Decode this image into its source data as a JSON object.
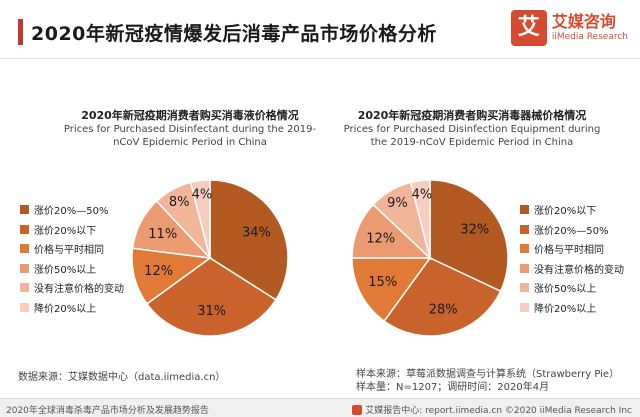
{
  "page": {
    "title": "2020年新冠疫情爆发后消毒产品市场价格分析"
  },
  "logo": {
    "mark": "艾",
    "cn": "艾媒咨询",
    "en": "iiMedia Research"
  },
  "colors": {
    "accent": "#c0392b",
    "brand": "#d64b2f"
  },
  "chart_data": [
    {
      "type": "pie",
      "title_cn": "2020年新冠疫期消费者购买消毒液价格情况",
      "title_en": "Prices for Purchased Disinfectant during the 2019-nCoV Epidemic Period in China",
      "title_en_line1": "Prices for Purchased Disinfectant during the 2019-",
      "title_en_line2": "nCoV Epidemic Period in China",
      "legend_position": "left",
      "slices": [
        {
          "label": "涨价20%—50%",
          "value": 34,
          "display": "34%",
          "color": "#b35a22"
        },
        {
          "label": "涨价20%以下",
          "value": 31,
          "display": "31%",
          "color": "#c9632b"
        },
        {
          "label": "价格与平时相同",
          "value": 12,
          "display": "12%",
          "color": "#e07a36"
        },
        {
          "label": "涨价50%以上",
          "value": 11,
          "display": "11%",
          "color": "#ec9a72"
        },
        {
          "label": "没有注意价格的变动",
          "value": 8,
          "display": "8%",
          "color": "#f2b59a"
        },
        {
          "label": "降价20%以上",
          "value": 4,
          "display": "4%",
          "color": "#f7cdbf"
        }
      ]
    },
    {
      "type": "pie",
      "title_cn": "2020年新冠疫期消费者购买消毒器械价格情况",
      "title_en": "Prices for Purchased Disinfection Equipment during the 2019-nCoV Epidemic Period in China",
      "title_en_line1": "Prices for Purchased Disinfection Equipment during",
      "title_en_line2": "the 2019-nCoV Epidemic Period in China",
      "legend_position": "right",
      "slices": [
        {
          "label": "涨价20%以下",
          "value": 32,
          "display": "32%",
          "color": "#b35a22"
        },
        {
          "label": "涨价20%—50%",
          "value": 28,
          "display": "28%",
          "color": "#c9632b"
        },
        {
          "label": "价格与平时相同",
          "value": 15,
          "display": "15%",
          "color": "#e07a36"
        },
        {
          "label": "没有注意价格的变动",
          "value": 12,
          "display": "12%",
          "color": "#ec9a72"
        },
        {
          "label": "涨价50%以上",
          "value": 9,
          "display": "9%",
          "color": "#f2b59a"
        },
        {
          "label": "降价20%以上",
          "value": 4,
          "display": "4%",
          "color": "#f7cdbf"
        }
      ]
    }
  ],
  "sources": {
    "left": "数据来源：艾媒数据中心（data.iimedia.cn）",
    "right_line1": "样本来源：草莓派数据调查与计算系统（Strawberry Pie）",
    "right_line2": "样本量：N=1207；调研时间：2020年4月"
  },
  "footer": {
    "left": "2020年全球消毒杀毒产品市场分析及发展趋势报告",
    "right": "艾媒报告中心: report.iimedia.cn  ©2020  iiMedia Research  Inc"
  }
}
